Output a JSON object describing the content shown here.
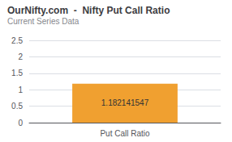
{
  "chart_data": {
    "type": "bar",
    "title": "OurNifty.com  -  Nifty Put Call Ratio",
    "subtitle": "Current Series Data",
    "categories": [
      "Put Call Ratio"
    ],
    "values": [
      1.182141547
    ],
    "color": "#f0a030",
    "ylim": [
      0,
      2.5
    ],
    "yticks": [
      0,
      0.5,
      1,
      1.5,
      2,
      2.5
    ],
    "grid": true,
    "data_labels": true
  }
}
